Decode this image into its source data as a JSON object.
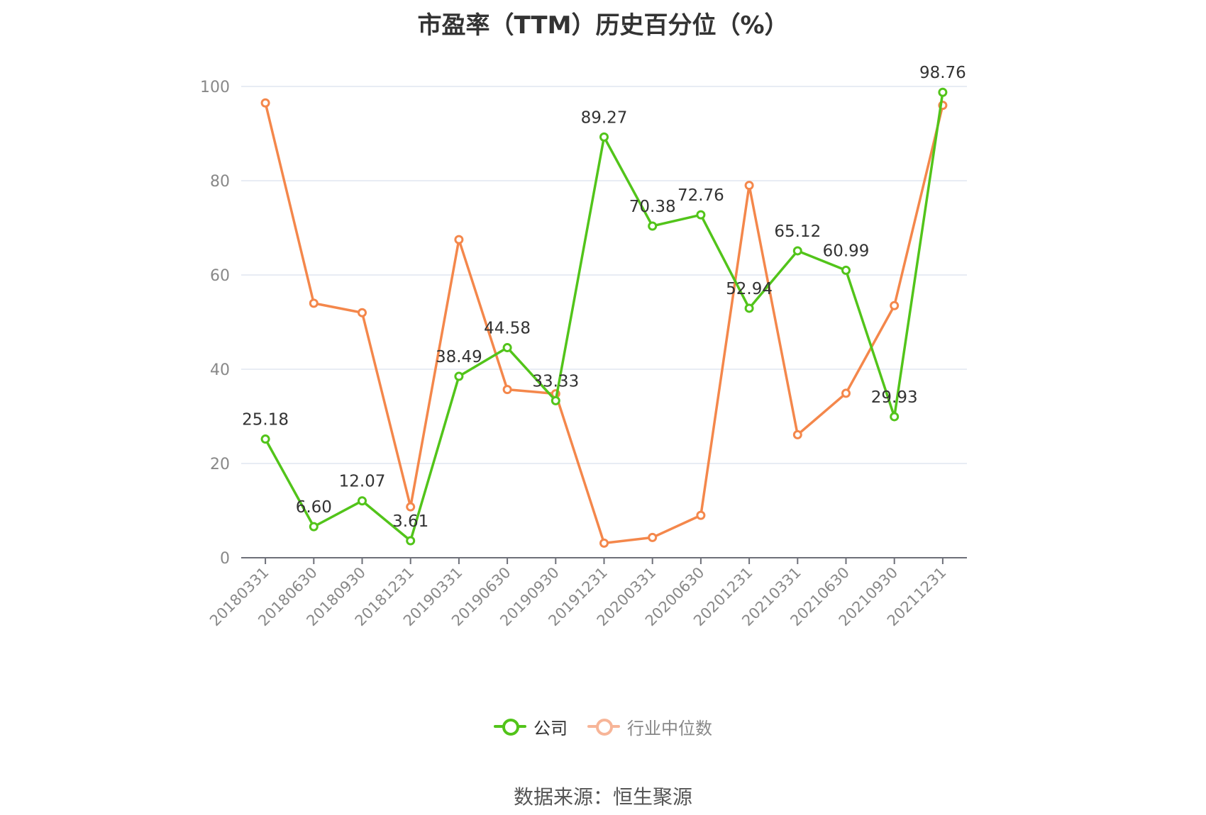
{
  "chart_data": {
    "type": "line",
    "title": "市盈率（TTM）历史百分位（%）",
    "categories": [
      "20180331",
      "20180630",
      "20180930",
      "20181231",
      "20190331",
      "20190630",
      "20190930",
      "20191231",
      "20200331",
      "20200630",
      "20201231",
      "20210331",
      "20210630",
      "20210930",
      "20211231"
    ],
    "ylim": [
      0,
      100
    ],
    "yticks": [
      0,
      20,
      40,
      60,
      80,
      100
    ],
    "grid": true,
    "legend_position": "bottom",
    "series": [
      {
        "name": "公司",
        "color": "#52c41a",
        "values": [
          25.18,
          6.6,
          12.07,
          3.61,
          38.49,
          44.58,
          33.33,
          89.27,
          70.38,
          72.76,
          52.94,
          65.12,
          60.99,
          29.93,
          98.76
        ],
        "labels": [
          "25.18",
          "6.60",
          "12.07",
          "3.61",
          "38.49",
          "44.58",
          "33.33",
          "89.27",
          "70.38",
          "72.76",
          "52.94",
          "65.12",
          "60.99",
          "29.93",
          "98.76"
        ]
      },
      {
        "name": "行业中位数",
        "color": "#f4874b",
        "values": [
          96.5,
          54.0,
          52.0,
          10.8,
          67.5,
          35.7,
          34.8,
          3.1,
          4.3,
          9.0,
          79.0,
          26.1,
          34.9,
          53.5,
          96.0
        ]
      }
    ]
  },
  "legend": {
    "items": [
      {
        "label": "公司",
        "color": "#52c41a",
        "text_color": "#333333"
      },
      {
        "label": "行业中位数",
        "color": "#f7b598",
        "text_color": "#888888"
      }
    ]
  },
  "source": "数据来源：恒生聚源"
}
